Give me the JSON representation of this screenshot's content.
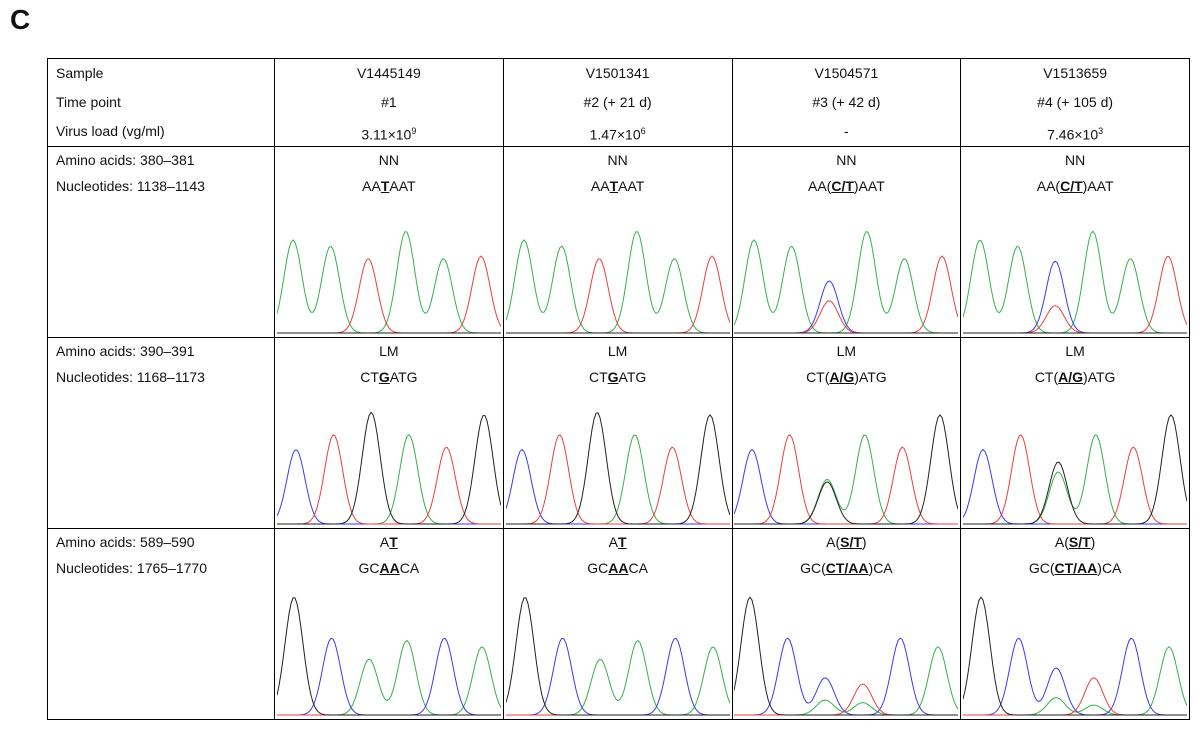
{
  "panel_label": "C",
  "table": {
    "header_rows": [
      {
        "label": "Sample",
        "cells": [
          [
            "V1445149"
          ],
          [
            "V1501341"
          ],
          [
            "V1504571"
          ],
          [
            "V1513659"
          ]
        ]
      },
      {
        "label": "Time point",
        "cells": [
          [
            "#1"
          ],
          [
            "#2 (+ 21 d)"
          ],
          [
            "#3 (+ 42 d)"
          ],
          [
            "#4 (+ 105 d)"
          ]
        ]
      },
      {
        "label": "Virus load (vg/ml)",
        "cells": [
          [
            "3.11×10",
            "9"
          ],
          [
            "1.47×10",
            "6"
          ],
          [
            "-"
          ],
          [
            "7.46×10",
            "3"
          ]
        ]
      }
    ],
    "sections": [
      {
        "amino_label": "Amino acids:  380–381",
        "nucleotide_label": "Nucleotides:  1138–1143",
        "amino": [
          [
            "NN"
          ],
          [
            "NN"
          ],
          [
            "NN"
          ],
          [
            "NN"
          ]
        ],
        "nucleotides": [
          [
            "AA",
            "T",
            "AAT"
          ],
          [
            "AA",
            "T",
            "AAT"
          ],
          [
            "AA(",
            "C/T",
            ")AAT"
          ],
          [
            "AA(",
            "C/T",
            ")AAT"
          ]
        ]
      },
      {
        "amino_label": "Amino acids:  390–391",
        "nucleotide_label": "Nucleotides:  1168–1173",
        "amino": [
          [
            "LM"
          ],
          [
            "LM"
          ],
          [
            "LM"
          ],
          [
            "LM"
          ]
        ],
        "nucleotides": [
          [
            "CT",
            "G",
            "ATG"
          ],
          [
            "CT",
            "G",
            "ATG"
          ],
          [
            "CT(",
            "A/G",
            ")ATG"
          ],
          [
            "CT(",
            "A/G",
            ")ATG"
          ]
        ]
      },
      {
        "amino_label": "Amino acids:  589–590",
        "nucleotide_label": "Nucleotides:  1765–1770",
        "amino": [
          [
            "A",
            "T"
          ],
          [
            "A",
            "T"
          ],
          [
            "A(",
            "S/T",
            ")"
          ],
          [
            "A(",
            "S/T",
            ")"
          ]
        ],
        "nucleotides": [
          [
            "GC",
            "AA",
            "CA"
          ],
          [
            "GC",
            "AA",
            "CA"
          ],
          [
            "GC(",
            "CT/AA",
            ")CA"
          ],
          [
            "GC(",
            "CT/AA",
            ")CA"
          ]
        ]
      }
    ]
  }
}
